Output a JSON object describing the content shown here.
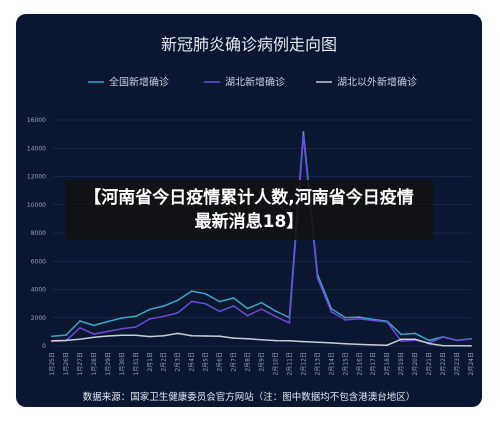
{
  "chart_data": {
    "type": "line",
    "title": "新冠肺炎确诊病例走向图",
    "xlabel": "",
    "ylabel": "",
    "ylim": [
      0,
      16000
    ],
    "yticks": [
      "0",
      "2000",
      "4000",
      "6000",
      "8000",
      "10000",
      "12000",
      "14000",
      "16000"
    ],
    "legend_position": "top",
    "grid": true,
    "x": [
      "1月25日",
      "1月26日",
      "1月27日",
      "1月28日",
      "1月29日",
      "1月30日",
      "1月31日",
      "2月1日",
      "2月2日",
      "2月3日",
      "2月4日",
      "2月5日",
      "2月6日",
      "2月7日",
      "2月8日",
      "2月9日",
      "2月10日",
      "2月11日",
      "2月12日",
      "2月13日",
      "2月14日",
      "2月15日",
      "2月16日",
      "2月17日",
      "2月18日",
      "2月19日",
      "2月20日",
      "2月21日",
      "2月22日",
      "2月23日",
      "2月24日"
    ],
    "series": [
      {
        "name": "全国新增确诊",
        "color": "#3fa3c9",
        "values": [
          688,
          769,
          1771,
          1459,
          1737,
          1982,
          2102,
          2590,
          2829,
          3235,
          3887,
          3694,
          3143,
          3399,
          2656,
          3062,
          2478,
          2015,
          15152,
          5090,
          2641,
          2009,
          2048,
          1886,
          1749,
          820,
          889,
          397,
          648,
          409,
          508
        ]
      },
      {
        "name": "湖北新增确诊",
        "color": "#6a4ad6",
        "values": [
          323,
          371,
          1291,
          840,
          1032,
          1220,
          1347,
          1921,
          2103,
          2345,
          3156,
          2987,
          2447,
          2841,
          2147,
          2618,
          2097,
          1638,
          14840,
          4823,
          2420,
          1843,
          1933,
          1807,
          1693,
          349,
          411,
          220,
          630,
          398,
          499
        ]
      },
      {
        "name": "湖北以外新增确诊",
        "color": "#c8ccd6",
        "values": [
          365,
          398,
          480,
          619,
          705,
          762,
          755,
          669,
          726,
          890,
          731,
          707,
          696,
          558,
          509,
          444,
          381,
          377,
          312,
          267,
          221,
          166,
          115,
          79,
          56,
          471,
          478,
          177,
          18,
          11,
          9
        ]
      }
    ]
  },
  "source": "数据来源：国家卫生健康委员会官方网站（注：图中数据均不包含港澳台地区）",
  "overlay": {
    "headline": "【河南省今日疫情累计人数,河南省今日疫情最新消息18】"
  }
}
